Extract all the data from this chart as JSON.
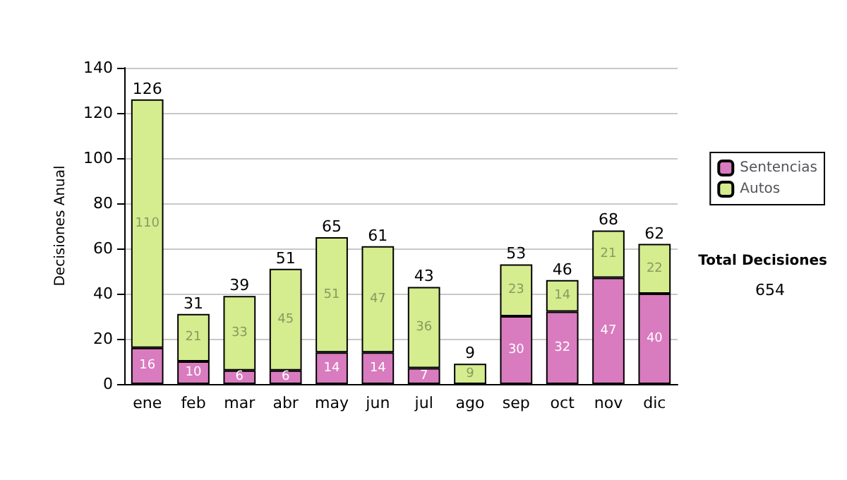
{
  "chart_data": {
    "type": "bar",
    "stacked": true,
    "ylabel": "Decisiones Anual",
    "categories": [
      "ene",
      "feb",
      "mar",
      "abr",
      "may",
      "jun",
      "jul",
      "ago",
      "sep",
      "oct",
      "nov",
      "dic"
    ],
    "series": [
      {
        "name": "Sentencias",
        "color": "#d97bbf",
        "values": [
          16,
          10,
          6,
          6,
          14,
          14,
          7,
          0,
          30,
          32,
          47,
          40
        ],
        "value_labels": [
          "16",
          "10",
          "6",
          "6",
          "14",
          "14",
          "7",
          null,
          "30",
          "32",
          "47",
          "40"
        ]
      },
      {
        "name": "Autos",
        "color": "#d5ec8f",
        "values": [
          110,
          21,
          33,
          45,
          51,
          47,
          36,
          9,
          23,
          14,
          21,
          22
        ],
        "value_labels": [
          "110",
          "21",
          "33",
          "45",
          "51",
          "47",
          "36",
          "9",
          "23",
          "14",
          "21",
          "22"
        ]
      }
    ],
    "totals": [
      "126",
      "31",
      "39",
      "51",
      "65",
      "61",
      "43",
      "9",
      "53",
      "46",
      "68",
      "62"
    ],
    "ylim": [
      0,
      140
    ],
    "yticks": [
      0,
      20,
      40,
      60,
      80,
      100,
      120,
      140
    ],
    "grid": "y",
    "legend": "right",
    "annotations": [
      "Total Decisiones",
      "654"
    ]
  }
}
